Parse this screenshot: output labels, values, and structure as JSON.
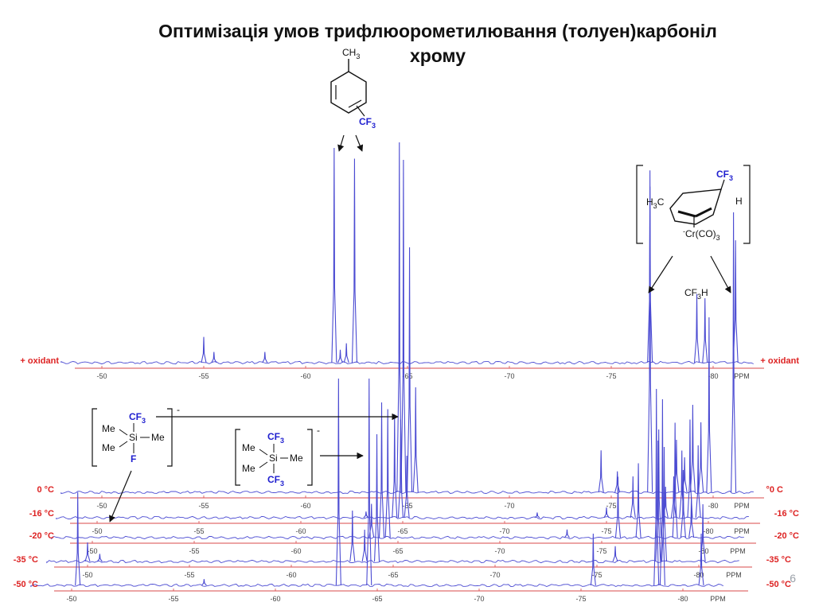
{
  "slide": {
    "title_line1": "Оптимізація умов трифлюорометилювання (толуен)карбоніл",
    "title_line2": "хрому",
    "page_number": "6"
  },
  "structures": {
    "toluene": {
      "methyl": "CH",
      "methyl_sub": "3",
      "group": "CF",
      "group_sub": "3"
    },
    "chromium_complex": {
      "cf3": "CF",
      "cf3_sub": "3",
      "h3c": "H",
      "h3c_sub": "3",
      "h3c_tail": "C",
      "h": "H",
      "charge": "-",
      "cr": "Cr(CO)",
      "cr_sub": "3"
    },
    "cf3h": {
      "text": "CF",
      "sub": "3",
      "tail": "H"
    },
    "silicate_f": {
      "cf3": "CF",
      "cf3_sub": "3",
      "me1": "Me",
      "me2": "Me",
      "me3": "Me",
      "si": "Si",
      "f": "F",
      "charge": "-"
    },
    "silicate_cf3": {
      "cf3a": "CF",
      "cf3a_sub": "3",
      "cf3b": "CF",
      "cf3b_sub": "3",
      "me1": "Me",
      "me2": "Me",
      "me3": "Me",
      "si": "Si",
      "charge": "-"
    }
  },
  "colors": {
    "spectrum": "#4b4bd2",
    "axis": "#d94a4a",
    "label": "#dd2222",
    "blue_text": "#1f1fcf",
    "text": "#111111"
  },
  "chart_data": {
    "type": "line",
    "title": "",
    "xlabel": "PPM",
    "ylabel": "",
    "axis_unit": "PPM",
    "xlim": [
      -48,
      -82
    ],
    "x_ticks": [
      -50,
      -55,
      -60,
      -65,
      -70,
      -75,
      -80
    ],
    "grid": false,
    "legend": "none",
    "series": [
      {
        "name": "+ oxidant",
        "label_left": "+ oxidant",
        "label_right": "+ oxidant",
        "peaks": [
          {
            "x": -55.0,
            "h": 0.12
          },
          {
            "x": -55.5,
            "h": 0.05
          },
          {
            "x": -58.0,
            "h": 0.05
          },
          {
            "x": -61.4,
            "h": 1.0
          },
          {
            "x": -62.4,
            "h": 0.95
          },
          {
            "x": -62.0,
            "h": 0.09
          },
          {
            "x": -61.7,
            "h": 0.06
          },
          {
            "x": -76.9,
            "h": 0.82
          },
          {
            "x": -79.2,
            "h": 0.32
          },
          {
            "x": -79.6,
            "h": 0.3
          },
          {
            "x": -81.1,
            "h": 0.57
          }
        ]
      },
      {
        "name": "0 °C",
        "label_left": "0 °C",
        "label_right": "°0 C",
        "peaks": [
          {
            "x": -64.6,
            "h": 1.0
          },
          {
            "x": -64.8,
            "h": 0.95
          },
          {
            "x": -65.1,
            "h": 0.7
          },
          {
            "x": -65.4,
            "h": 0.3
          },
          {
            "x": -74.5,
            "h": 0.12
          },
          {
            "x": -75.3,
            "h": 0.06
          },
          {
            "x": -76.9,
            "h": 0.92
          },
          {
            "x": -78.2,
            "h": 0.15
          },
          {
            "x": -78.6,
            "h": 0.1
          },
          {
            "x": -79.0,
            "h": 0.25
          },
          {
            "x": -79.4,
            "h": 0.2
          },
          {
            "x": -79.8,
            "h": 0.5
          },
          {
            "x": -81.0,
            "h": 0.8
          }
        ]
      },
      {
        "name": "-16 °C",
        "label_left": "-16 °C",
        "label_right": "-16 °C",
        "peaks": [
          {
            "x": -64.6,
            "h": 1.0
          },
          {
            "x": -64.9,
            "h": 0.95
          },
          {
            "x": -65.2,
            "h": 0.6
          },
          {
            "x": -63.2,
            "h": 0.06
          },
          {
            "x": -71.6,
            "h": 0.05
          },
          {
            "x": -75.0,
            "h": 0.1
          },
          {
            "x": -76.3,
            "h": 0.4
          },
          {
            "x": -77.9,
            "h": 0.3
          },
          {
            "x": -78.3,
            "h": 0.4
          },
          {
            "x": -78.7,
            "h": 0.65
          },
          {
            "x": -79.1,
            "h": 0.95
          },
          {
            "x": -79.5,
            "h": 0.7
          }
        ]
      },
      {
        "name": "-20 °C",
        "label_left": "-20 °C",
        "label_right": "-20 °C",
        "peaks": [
          {
            "x": -64.2,
            "h": 1.0
          },
          {
            "x": -64.5,
            "h": 0.95
          },
          {
            "x": -63.7,
            "h": 0.25
          },
          {
            "x": -73.3,
            "h": 0.06
          },
          {
            "x": -75.8,
            "h": 0.45
          },
          {
            "x": -76.8,
            "h": 0.55
          },
          {
            "x": -77.8,
            "h": 0.8
          },
          {
            "x": -78.6,
            "h": 0.85
          },
          {
            "x": -79.0,
            "h": 0.5
          },
          {
            "x": -79.4,
            "h": 0.3
          }
        ]
      },
      {
        "name": "-35 °C",
        "label_left": "-35 °C",
        "label_right": "-35 °C",
        "peaks": [
          {
            "x": -50.0,
            "h": 0.15
          },
          {
            "x": -50.6,
            "h": 0.06
          },
          {
            "x": -64.2,
            "h": 1.0
          },
          {
            "x": -63.0,
            "h": 0.4
          },
          {
            "x": -63.6,
            "h": 0.25
          },
          {
            "x": -75.9,
            "h": 0.12
          },
          {
            "x": -78.0,
            "h": 0.95
          },
          {
            "x": -78.3,
            "h": 0.9
          },
          {
            "x": -80.2,
            "h": 0.45
          }
        ]
      },
      {
        "name": "-50 °C",
        "label_left": "-50 °C",
        "label_right": "-50 °C",
        "peaks": [
          {
            "x": -50.3,
            "h": 0.45
          },
          {
            "x": -56.5,
            "h": 0.03
          },
          {
            "x": -64.6,
            "h": 1.0
          },
          {
            "x": -63.1,
            "h": 1.0
          },
          {
            "x": -75.6,
            "h": 0.25
          },
          {
            "x": -78.7,
            "h": 0.95
          },
          {
            "x": -79.0,
            "h": 0.9
          },
          {
            "x": -80.9,
            "h": 0.25
          }
        ]
      }
    ]
  }
}
